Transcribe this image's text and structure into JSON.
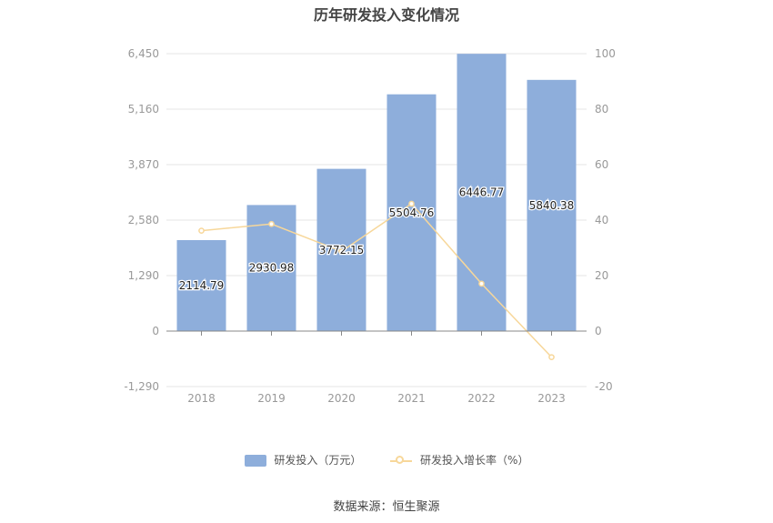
{
  "chart_data": {
    "type": "bar",
    "title": "历年研发投入变化情况",
    "categories": [
      "2018",
      "2019",
      "2020",
      "2021",
      "2022",
      "2023"
    ],
    "series": [
      {
        "name": "研发投入（万元）",
        "type": "bar",
        "axis": "left",
        "values": [
          2114.79,
          2930.98,
          3772.15,
          5504.76,
          6446.77,
          5840.38
        ],
        "labels": [
          "2114.79",
          "2930.98",
          "3772.15",
          "5504.76",
          "6446.77",
          "5840.38"
        ]
      },
      {
        "name": "研发投入增长率（%）",
        "type": "line",
        "axis": "right",
        "values": [
          36.2,
          38.6,
          28.7,
          45.9,
          17.1,
          -9.4
        ]
      }
    ],
    "y_left": {
      "min": -1290,
      "max": 6450,
      "ticks": [
        "-1,290",
        "0",
        "1,290",
        "2,580",
        "3,870",
        "5,160",
        "6,450"
      ],
      "tick_values": [
        -1290,
        0,
        1290,
        2580,
        3870,
        5160,
        6450
      ]
    },
    "y_right": {
      "min": -20,
      "max": 100,
      "ticks": [
        "-20",
        "0",
        "20",
        "40",
        "60",
        "80",
        "100"
      ],
      "tick_values": [
        -20,
        0,
        20,
        40,
        60,
        80,
        100
      ]
    },
    "grid": true,
    "legend_position": "bottom",
    "colors": {
      "bar": "#8eaedb",
      "line": "#f7d79a",
      "grid": "#e6e6e6",
      "axis_text": "#999999"
    }
  },
  "source": "数据来源：恒生聚源"
}
